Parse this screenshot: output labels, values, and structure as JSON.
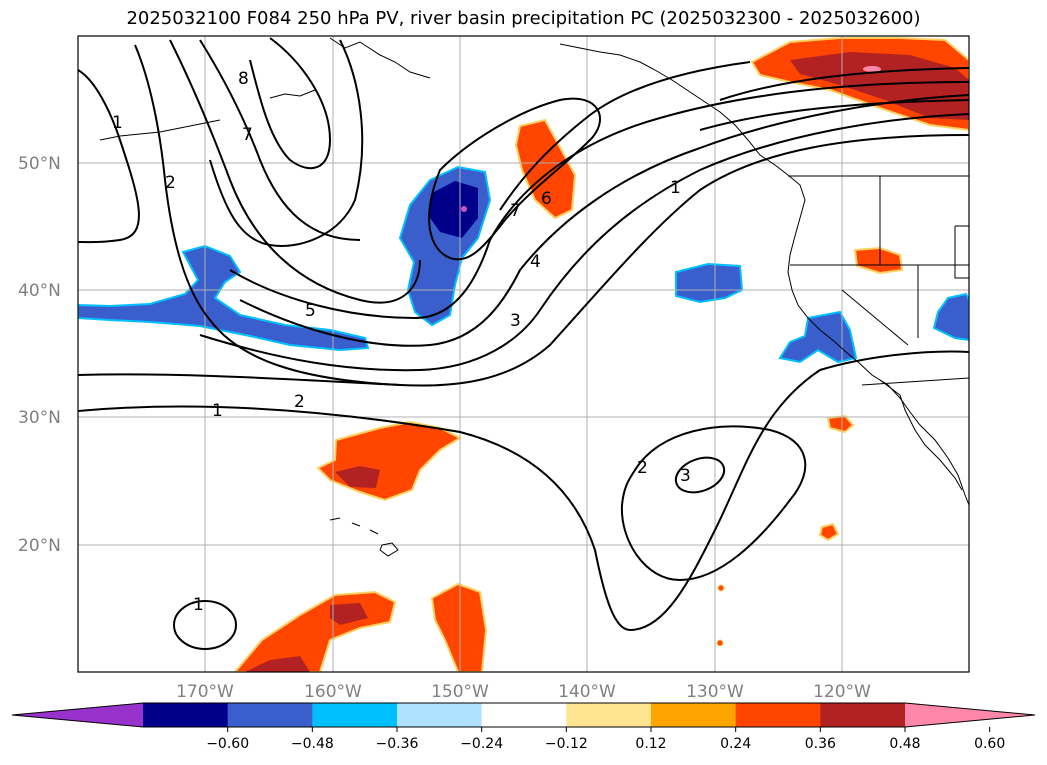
{
  "title": "2025032100 F084 250 hPa PV, river basin precipitation PC (2025032300 - 2025032600)",
  "map": {
    "lon_range": [
      -180,
      -110
    ],
    "lat_range": [
      10,
      60
    ],
    "lat_labels": [
      "50°N",
      "40°N",
      "30°N",
      "20°N"
    ],
    "lon_labels": [
      "170°W",
      "160°W",
      "150°W",
      "140°W",
      "130°W",
      "120°W"
    ],
    "gridlines": true
  },
  "contour_labels": [
    "1",
    "2",
    "8",
    "7",
    "5",
    "2",
    "1",
    "7",
    "6",
    "4",
    "3",
    "1",
    "2",
    "3",
    "1"
  ],
  "colorbar": {
    "ticks": [
      "−0.60",
      "−0.48",
      "−0.36",
      "−0.24",
      "−0.12",
      "0.12",
      "0.24",
      "0.36",
      "0.48",
      "0.60"
    ],
    "colors": [
      "#9932cc",
      "#00008b",
      "#3a5fcd",
      "#00bfff",
      "#b0e2ff",
      "#ffffff",
      "#ffe58f",
      "#ffa500",
      "#ff4500",
      "#b22222",
      "#ff88aa"
    ],
    "extend": "both"
  }
}
